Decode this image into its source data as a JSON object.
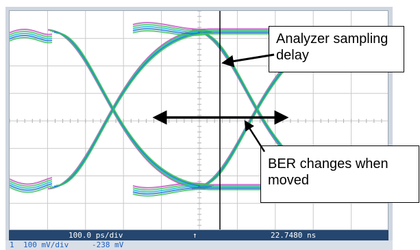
{
  "scope": {
    "timebase": "100.0 ps/div",
    "trigger_marker": "↑",
    "delay": "22.7480 ns",
    "channel": "1",
    "volts_per_div": "100 mV/div",
    "offset": "-238 mV"
  },
  "callouts": {
    "sampling_delay_line1": "Analyzer sampling",
    "sampling_delay_line2": "delay",
    "ber_line1": "BER changes when",
    "ber_line2": "moved"
  },
  "colors": {
    "trace_blue": "#1f6fd6",
    "trace_cyan": "#19b9d8",
    "trace_green": "#3cc35a",
    "trace_magenta": "#c24fc0",
    "status_bar": "#24466f",
    "readout_text": "#1f5fc0"
  }
}
